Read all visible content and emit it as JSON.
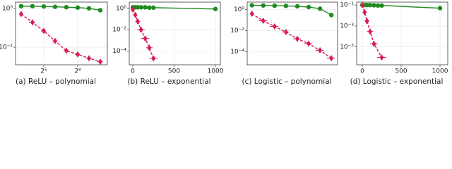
{
  "chart_data": [
    {
      "type": "line",
      "caption": "(a) ReLU – polynomial",
      "xscale": "log2",
      "yscale": "log",
      "grid": true,
      "xlim": [
        5.66,
        1579
      ],
      "xticks": [
        {
          "value": 32,
          "label": "2⁵"
        },
        {
          "value": 256,
          "label": "2⁸"
        }
      ],
      "ylim": [
        0.00125,
        2.1
      ],
      "yticks": [
        {
          "value": 1,
          "label": "10⁰"
        },
        {
          "value": 0.01,
          "label": "10⁻²"
        }
      ],
      "series": [
        {
          "color": "#1f8a1f",
          "marker": "circle",
          "linestyle": "solid",
          "x": [
            8,
            16,
            32,
            64,
            128,
            256,
            512,
            1024
          ],
          "values": [
            1.3,
            1.3,
            1.25,
            1.2,
            1.15,
            1.1,
            1.0,
            0.8
          ]
        },
        {
          "color": "#d81b50",
          "marker": "diamond",
          "linestyle": "dashed",
          "x": [
            8,
            16,
            32,
            64,
            128,
            256,
            512,
            1024
          ],
          "values": [
            0.51,
            0.19,
            0.069,
            0.021,
            0.0066,
            0.0043,
            0.0027,
            0.0018
          ],
          "x_error": [
            1,
            3,
            5,
            10,
            20,
            40,
            90,
            180
          ]
        }
      ]
    },
    {
      "type": "line",
      "caption": "(b) ReLU – exponential",
      "xscale": "linear",
      "yscale": "log",
      "grid": true,
      "xlim": [
        -43,
        1060
      ],
      "xticks": [
        0,
        500,
        1000
      ],
      "ylim": [
        5e-06,
        4
      ],
      "yticks": [
        {
          "value": 1,
          "label": "10⁰"
        },
        {
          "value": 0.01,
          "label": "10⁻²"
        },
        {
          "value": 0.0001,
          "label": "10⁻⁴"
        }
      ],
      "series": [
        {
          "color": "#1f8a1f",
          "marker": "circle",
          "linestyle": "solid",
          "x": [
            0,
            30,
            60,
            100,
            150,
            200,
            250,
            1000
          ],
          "values": [
            1.3,
            1.3,
            1.3,
            1.3,
            1.3,
            1.2,
            1.2,
            0.9
          ]
        },
        {
          "color": "#d81b50",
          "marker": "diamond",
          "linestyle": "dashed",
          "x": [
            0,
            30,
            60,
            100,
            150,
            200,
            250
          ],
          "values": [
            0.8,
            0.25,
            0.06,
            0.01,
            0.0015,
            0.0002,
            2e-05
          ],
          "x_error": [
            5,
            15,
            30,
            45,
            50,
            40,
            50
          ]
        }
      ]
    },
    {
      "type": "line",
      "caption": "(c) Logistic – polynomial",
      "xscale": "log2",
      "yscale": "log",
      "grid": true,
      "xlim": [
        6,
        1500
      ],
      "xticks": [],
      "ylim": [
        6e-06,
        5
      ],
      "yticks": [
        {
          "value": 1,
          "label": "10⁰"
        },
        {
          "value": 0.01,
          "label": "10⁻²"
        },
        {
          "value": 0.0001,
          "label": "10⁻⁴"
        }
      ],
      "series": [
        {
          "color": "#1f8a1f",
          "marker": "circle",
          "linestyle": "solid",
          "x": [
            8,
            16,
            32,
            64,
            128,
            256,
            512,
            1024
          ],
          "values": [
            2.5,
            2.4,
            2.3,
            2.2,
            2.0,
            1.7,
            1.2,
            0.3
          ]
        },
        {
          "color": "#d81b50",
          "marker": "diamond",
          "linestyle": "dashed",
          "x": [
            8,
            16,
            32,
            64,
            128,
            256,
            512,
            1024
          ],
          "values": [
            0.4,
            0.086,
            0.025,
            0.0074,
            0.0017,
            0.0006,
            0.00014,
            2.5e-05
          ],
          "x_error": [
            1,
            4,
            8,
            14,
            30,
            60,
            120,
            250
          ]
        }
      ]
    },
    {
      "type": "line",
      "caption": "(d) Logistic – exponential",
      "xscale": "linear",
      "yscale": "log",
      "grid": true,
      "xlim": [
        -73,
        1100
      ],
      "xticks": [
        0,
        500,
        1000
      ],
      "ylim": [
        2e-07,
        0.19
      ],
      "yticks": [
        {
          "value": 0.1,
          "label": "10⁻¹"
        },
        {
          "value": 0.001,
          "label": "10⁻³"
        },
        {
          "value": 1e-05,
          "label": "10⁻⁵"
        }
      ],
      "series": [
        {
          "color": "#1f8a1f",
          "marker": "circle",
          "linestyle": "solid",
          "x": [
            0,
            30,
            60,
            100,
            150,
            200,
            250,
            1000
          ],
          "values": [
            0.1,
            0.1,
            0.1,
            0.1,
            0.095,
            0.09,
            0.09,
            0.05
          ]
        },
        {
          "color": "#d81b50",
          "marker": "diamond",
          "linestyle": "dashed",
          "x": [
            0,
            30,
            60,
            100,
            150,
            250
          ],
          "values": [
            0.1,
            0.02,
            0.003,
            0.0003,
            2e-05,
            1e-06
          ],
          "x_error": [
            5,
            20,
            30,
            40,
            50,
            60
          ]
        }
      ]
    }
  ]
}
